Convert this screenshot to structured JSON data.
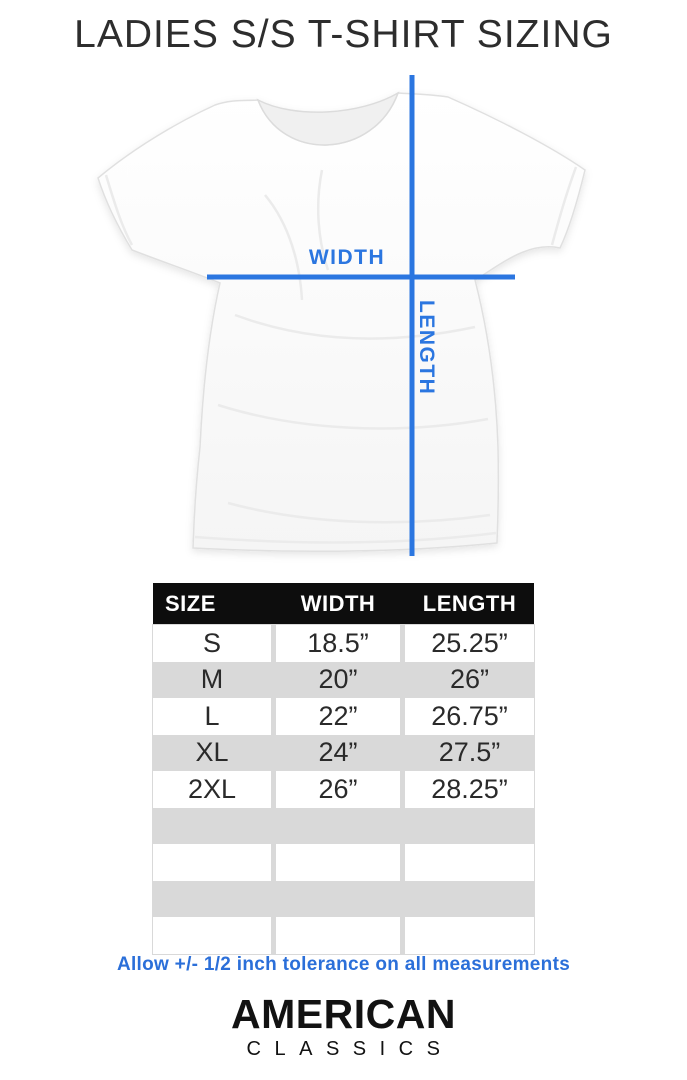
{
  "title": "LADIES S/S T-SHIRT SIZING",
  "diagram": {
    "width_label": "WIDTH",
    "length_label": "LENGTH",
    "accent_color": "#2b76e0"
  },
  "size_table": {
    "headers": [
      "SIZE",
      "WIDTH",
      "LENGTH"
    ],
    "rows": [
      {
        "size": "S",
        "width": "18.5”",
        "length": "25.25”"
      },
      {
        "size": "M",
        "width": "20”",
        "length": "26”"
      },
      {
        "size": "L",
        "width": "22”",
        "length": "26.75”"
      },
      {
        "size": "XL",
        "width": "24”",
        "length": "27.5”"
      },
      {
        "size": "2XL",
        "width": "26”",
        "length": "28.25”"
      }
    ],
    "empty_row_count": 4,
    "header_bg": "#0d0d0d",
    "stripe_color": "#d9d9d9"
  },
  "tolerance_note": "Allow +/- 1/2 inch tolerance on all measurements",
  "brand": {
    "line1": "AMERICAN",
    "line2": "CLASSICS"
  }
}
